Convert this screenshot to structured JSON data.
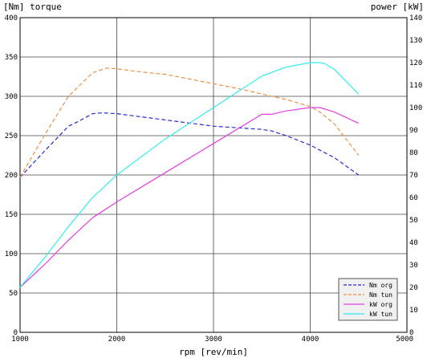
{
  "chart_data": {
    "type": "line",
    "title": "",
    "xlabel": "rpm [rev/min]",
    "ylabel_left": "[Nm] torque",
    "ylabel_right": "power [kW]",
    "xlim": [
      1000,
      5000
    ],
    "ylim_left": [
      0,
      400
    ],
    "ylim_right": [
      0,
      140
    ],
    "x_ticks": [
      1000,
      2000,
      3000,
      4000,
      5000
    ],
    "y_ticks_left": [
      0,
      50,
      100,
      150,
      200,
      250,
      300,
      350,
      400
    ],
    "y_ticks_right": [
      0,
      10,
      20,
      30,
      40,
      50,
      60,
      70,
      80,
      90,
      100,
      110,
      120,
      130,
      140
    ],
    "grid": true,
    "legend_position": "bottom-right",
    "series": [
      {
        "name": "Nm org",
        "axis": "left",
        "color": "#2b2bd6",
        "dash": "dashed",
        "x": [
          1000,
          1250,
          1500,
          1600,
          1750,
          1850,
          2000,
          2250,
          2500,
          2750,
          3000,
          3250,
          3500,
          3600,
          3750,
          4000,
          4250,
          4500
        ],
        "y": [
          197,
          230,
          262,
          268,
          278,
          279,
          278,
          274,
          270,
          266,
          262,
          260,
          258,
          256,
          250,
          238,
          222,
          200
        ]
      },
      {
        "name": "Nm tun",
        "axis": "left",
        "color": "#ee9040",
        "dash": "dashed",
        "x": [
          1000,
          1250,
          1500,
          1750,
          1900,
          2000,
          2250,
          2500,
          2750,
          3000,
          3250,
          3500,
          3750,
          4000,
          4100,
          4250,
          4500
        ],
        "y": [
          197,
          250,
          300,
          330,
          336,
          335,
          331,
          328,
          322,
          316,
          310,
          303,
          296,
          287,
          280,
          265,
          225
        ]
      },
      {
        "name": "kW org",
        "axis": "right",
        "color": "#e23de2",
        "dash": "solid",
        "x": [
          1000,
          1250,
          1500,
          1750,
          2000,
          2500,
          3000,
          3500,
          3600,
          3750,
          4000,
          4100,
          4250,
          4500
        ],
        "y": [
          20,
          30,
          41,
          51,
          58,
          71,
          84,
          97,
          97,
          98.5,
          100,
          100,
          98,
          93
        ]
      },
      {
        "name": "kW tun",
        "axis": "right",
        "color": "#33ecec",
        "dash": "solid",
        "x": [
          1000,
          1250,
          1500,
          1750,
          2000,
          2500,
          3000,
          3500,
          3750,
          4000,
          4100,
          4150,
          4250,
          4500
        ],
        "y": [
          20,
          33,
          47,
          60,
          70,
          86,
          100,
          114,
          118,
          120,
          120,
          119.5,
          117,
          106
        ]
      }
    ]
  }
}
